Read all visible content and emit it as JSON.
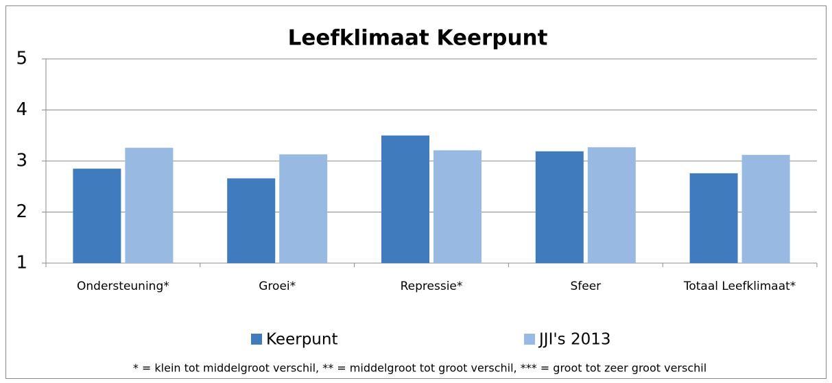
{
  "chart_data": {
    "type": "bar",
    "title": "Leefklimaat Keerpunt",
    "categories": [
      "Ondersteuning*",
      "Groei*",
      "Repressie*",
      "Sfeer",
      "Totaal Leefklimaat*"
    ],
    "series": [
      {
        "name": "Keerpunt",
        "color": "#3f7bbd",
        "values": [
          2.85,
          2.66,
          3.5,
          3.19,
          2.76
        ]
      },
      {
        "name": "JJI's 2013",
        "color": "#98b9e1",
        "values": [
          3.26,
          3.13,
          3.21,
          3.27,
          3.12
        ]
      }
    ],
    "ylim": [
      1,
      5
    ],
    "yticks": [
      1,
      2,
      3,
      4,
      5
    ],
    "grid": true,
    "legend": "bottom",
    "note": "* = klein tot middelgroot verschil, ** = middelgroot tot groot verschil, *** = groot tot zeer groot verschil"
  }
}
